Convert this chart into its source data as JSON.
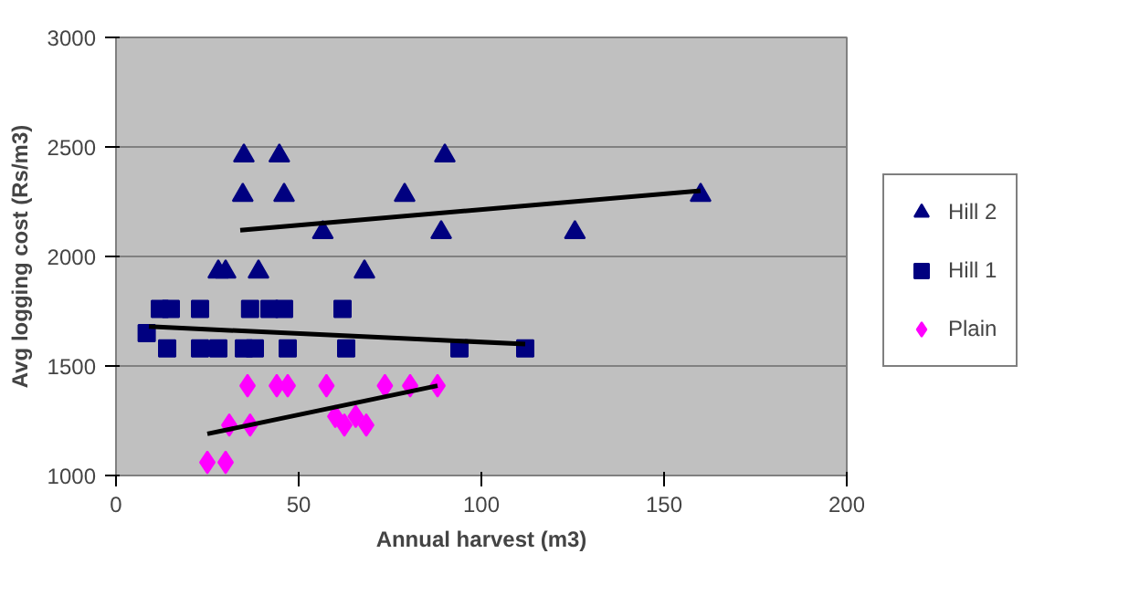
{
  "chart_data": {
    "type": "scatter",
    "xlabel": "Annual harvest (m3)",
    "ylabel": "Avg logging cost (Rs/m3)",
    "xlim": [
      0,
      200
    ],
    "xticks": [
      0,
      50,
      100,
      150,
      200
    ],
    "ylim": [
      1000,
      3000
    ],
    "yticks": [
      1000,
      1500,
      2000,
      2500,
      3000
    ],
    "grid": "y",
    "legend": "right",
    "series": [
      {
        "name": "Hill 2",
        "color": "#000080",
        "marker": "triangle",
        "x": [
          35,
          44.7,
          90,
          34.7,
          46,
          79,
          160,
          56.6,
          89,
          125.6,
          28,
          30,
          39,
          68
        ],
        "values": [
          2460,
          2460,
          2460,
          2280,
          2280,
          2280,
          2280,
          2110,
          2110,
          2110,
          1930,
          1930,
          1930,
          1930
        ]
      },
      {
        "name": "Hill 1",
        "color": "#000080",
        "marker": "square",
        "x": [
          12,
          15,
          23,
          36.7,
          42,
          46,
          62,
          8.4,
          14,
          23,
          28,
          35,
          38,
          47,
          63,
          94,
          112
        ],
        "values": [
          1760,
          1760,
          1760,
          1760,
          1760,
          1760,
          1760,
          1650,
          1580,
          1580,
          1580,
          1580,
          1580,
          1580,
          1580,
          1580,
          1580
        ]
      },
      {
        "name": "Plain",
        "color": "#ff00ff",
        "marker": "diamond",
        "x": [
          36,
          44,
          47,
          57.6,
          73.6,
          80.5,
          88,
          31,
          36.7,
          60,
          62.5,
          65.6,
          68.5,
          25,
          30
        ],
        "values": [
          1410,
          1410,
          1410,
          1410,
          1410,
          1410,
          1410,
          1230,
          1230,
          1270,
          1230,
          1270,
          1230,
          1060,
          1060
        ]
      },
      {
        "type": "line",
        "color": "#000000",
        "x": [
          34,
          160
        ],
        "values": [
          2120,
          2300
        ]
      },
      {
        "type": "line",
        "color": "#000000",
        "x": [
          9,
          112
        ],
        "values": [
          1680,
          1600
        ]
      },
      {
        "type": "line",
        "color": "#000000",
        "x": [
          25,
          88
        ],
        "values": [
          1190,
          1410
        ]
      }
    ]
  }
}
